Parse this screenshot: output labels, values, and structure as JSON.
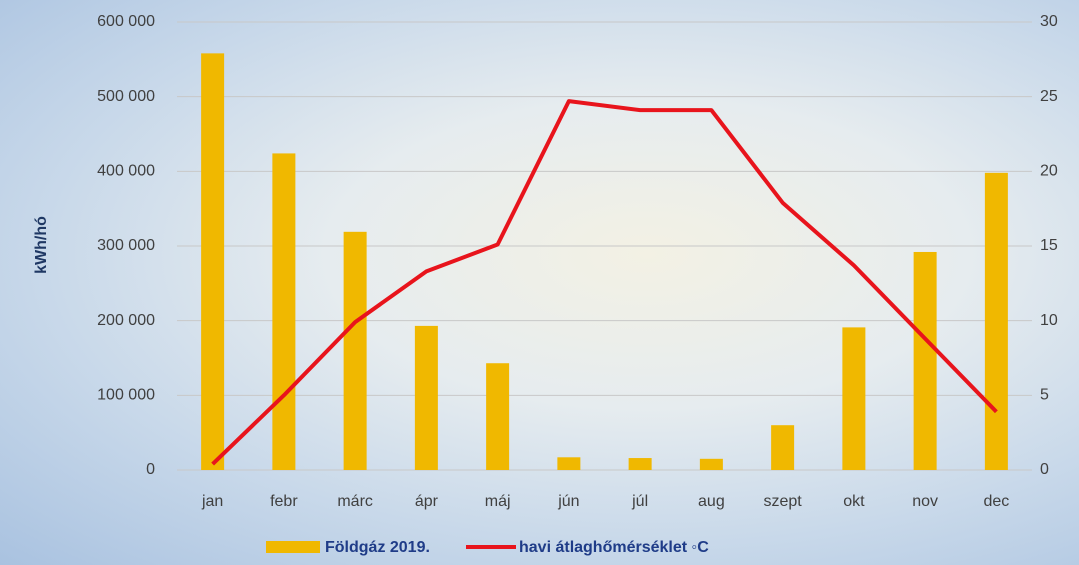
{
  "chart_data": {
    "type": "bar",
    "y_label": "kWh/hó",
    "categories": [
      "jan",
      "febr",
      "márc",
      "ápr",
      "máj",
      "jún",
      "júl",
      "aug",
      "szept",
      "okt",
      "nov",
      "dec"
    ],
    "series": [
      {
        "name": "Földgáz 2019.",
        "type": "bar",
        "color": "#f0b800",
        "values": [
          558000,
          424000,
          319000,
          193000,
          143000,
          17000,
          16000,
          15000,
          60000,
          191000,
          292000,
          398000
        ]
      },
      {
        "name": "havi átlaghőmérséklet ◦C",
        "type": "line",
        "axis": "y2",
        "color": "#e8141c",
        "values": [
          0.4,
          5.0,
          9.9,
          13.3,
          15.1,
          24.7,
          24.1,
          24.1,
          17.9,
          13.7,
          8.8,
          3.9
        ]
      }
    ],
    "ylim": [
      0,
      600000
    ],
    "yticks": [
      0,
      {
        "value": 100000,
        "label": "100 000"
      },
      {
        "value": 200000,
        "label": "200 000"
      },
      {
        "value": 300000,
        "label": "300 000"
      },
      {
        "value": 400000,
        "label": "400 000"
      },
      {
        "value": 500000,
        "label": "500 000"
      },
      {
        "value": 600000,
        "label": "600 000"
      }
    ],
    "y2lim": [
      0,
      30
    ],
    "y2ticks": [
      0,
      5,
      10,
      15,
      20,
      25,
      30
    ],
    "grid": true
  }
}
